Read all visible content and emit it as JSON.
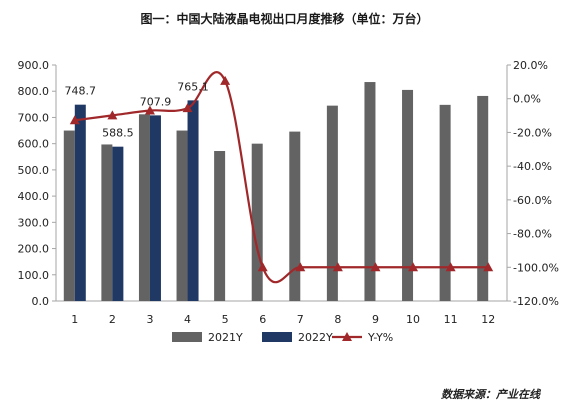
{
  "chart_data": {
    "type": "bar",
    "title": "图一：中国大陆液晶电视出口月度推移（单位：万台）",
    "categories": [
      "1",
      "2",
      "3",
      "4",
      "5",
      "6",
      "7",
      "8",
      "9",
      "10",
      "11",
      "12"
    ],
    "series": [
      {
        "name": "2021Y",
        "type": "bar",
        "color": "#636363",
        "values": [
          650,
          597,
          712,
          650,
          572,
          600,
          646,
          745,
          835,
          805,
          748,
          782
        ]
      },
      {
        "name": "2022Y",
        "type": "bar",
        "color": "#1f3864",
        "values": [
          748.7,
          588.5,
          707.9,
          765.1,
          null,
          null,
          null,
          null,
          null,
          null,
          null,
          null
        ],
        "data_labels": [
          "748.7",
          "588.5",
          "707.9",
          "765.1"
        ]
      },
      {
        "name": "Y-Y%",
        "type": "line",
        "axis": "right",
        "color": "#a0282a",
        "values": [
          -12.8,
          -9.9,
          -7.0,
          -5.6,
          10.6,
          -100,
          -100,
          -100,
          -100,
          -100,
          -100,
          -100
        ]
      }
    ],
    "y_left": {
      "min": 0,
      "max": 900,
      "step": 100,
      "ticks": [
        "0.0",
        "100.0",
        "200.0",
        "300.0",
        "400.0",
        "500.0",
        "600.0",
        "700.0",
        "800.0",
        "900.0"
      ]
    },
    "y_right": {
      "min": -120,
      "max": 20,
      "step": 20,
      "ticks": [
        "-120.0%",
        "-100.0%",
        "-80.0%",
        "-60.0%",
        "-40.0%",
        "-20.0%",
        "0.0%",
        "20.0%"
      ]
    },
    "legend_position": "bottom",
    "grid": false
  },
  "source_note": "数据来源：产业在线"
}
